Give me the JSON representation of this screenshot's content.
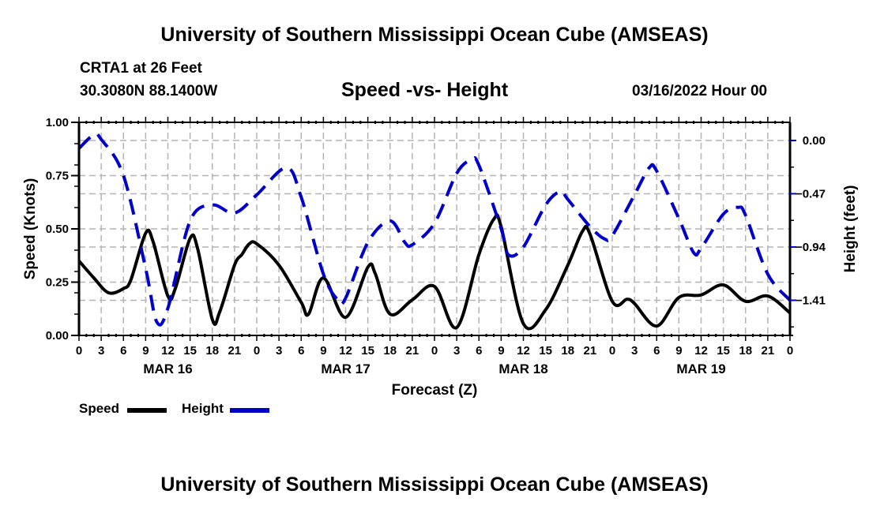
{
  "header": {
    "main_title": "University of Southern Mississippi Ocean Cube (AMSEAS)",
    "station": "CRTA1 at 26 Feet",
    "coords": "30.3080N  88.1400W",
    "subtitle": "Speed -vs- Height",
    "datetime": "03/16/2022 Hour 00"
  },
  "footer": {
    "title": "University of Southern Mississippi Ocean Cube (AMSEAS)"
  },
  "legend": {
    "items": [
      {
        "label": "Speed",
        "color": "#000000",
        "style": "solid"
      },
      {
        "label": "Height",
        "color": "#0000cc",
        "style": "dashed"
      }
    ]
  },
  "chart_data": {
    "type": "line",
    "title": "Speed -vs- Height",
    "xlabel": "Forecast (Z)",
    "ylabel": "Speed (Knots)",
    "y2label": "Height (feet)",
    "x_unit": "forecast hour from 03/16/2022 00Z",
    "xlim": [
      0,
      96
    ],
    "x_ticks": [
      0,
      3,
      6,
      9,
      12,
      15,
      18,
      21,
      24,
      27,
      30,
      33,
      36,
      39,
      42,
      45,
      48,
      51,
      54,
      57,
      60,
      63,
      66,
      69,
      72,
      75,
      78,
      81,
      84,
      87,
      90,
      93,
      96
    ],
    "x_tick_labels": [
      "0",
      "3",
      "6",
      "9",
      "12",
      "15",
      "18",
      "21",
      "0",
      "3",
      "6",
      "9",
      "12",
      "15",
      "18",
      "21",
      "0",
      "3",
      "6",
      "9",
      "12",
      "15",
      "18",
      "21",
      "0",
      "3",
      "6",
      "9",
      "12",
      "15",
      "18",
      "21",
      "0"
    ],
    "day_labels": [
      {
        "label": "MAR 16",
        "hour": 12
      },
      {
        "label": "MAR 17",
        "hour": 36
      },
      {
        "label": "MAR 18",
        "hour": 60
      },
      {
        "label": "MAR 19",
        "hour": 84
      }
    ],
    "ylim": [
      0,
      1.0
    ],
    "y_ticks": [
      0.0,
      0.25,
      0.5,
      0.75,
      1.0
    ],
    "y_tick_labels": [
      "0.00",
      "0.25",
      "0.50",
      "0.75",
      "1.00"
    ],
    "y2lim": [
      -1.72,
      0.16
    ],
    "y2_ticks": [
      0.0,
      -0.47,
      -0.94,
      -1.41
    ],
    "y2_tick_labels": [
      "0.00",
      "−0.47",
      "−0.94",
      "−1.41"
    ],
    "grid": true,
    "legend_position": "bottom-left",
    "series": [
      {
        "name": "Speed",
        "axis": "left",
        "color": "#000000",
        "style": "solid",
        "x": [
          0,
          2,
          4,
          6,
          7,
          9,
          10,
          12,
          13,
          15,
          16,
          18,
          19,
          21,
          22,
          23,
          24,
          27,
          30,
          31,
          33,
          36,
          39,
          40,
          42,
          45,
          48,
          51,
          54,
          56,
          57,
          60,
          63,
          66,
          68,
          69,
          72,
          74,
          75,
          78,
          81,
          84,
          87,
          90,
          93,
          96
        ],
        "values": [
          0.35,
          0.27,
          0.2,
          0.22,
          0.26,
          0.48,
          0.44,
          0.185,
          0.22,
          0.455,
          0.41,
          0.075,
          0.11,
          0.33,
          0.38,
          0.43,
          0.43,
          0.33,
          0.155,
          0.1,
          0.27,
          0.085,
          0.32,
          0.29,
          0.1,
          0.167,
          0.23,
          0.037,
          0.38,
          0.545,
          0.51,
          0.055,
          0.12,
          0.33,
          0.49,
          0.475,
          0.16,
          0.17,
          0.15,
          0.044,
          0.178,
          0.19,
          0.237,
          0.16,
          0.185,
          0.105
        ]
      },
      {
        "name": "Height",
        "axis": "right",
        "color": "#0000cc",
        "style": "dashed",
        "x": [
          0,
          2,
          3,
          6,
          9,
          10.5,
          12,
          15,
          18,
          21,
          24,
          28,
          30,
          33,
          35,
          36,
          39,
          42,
          44,
          45,
          48,
          51,
          53,
          54,
          57,
          58,
          60,
          63,
          65,
          66,
          69,
          71,
          72,
          75,
          77,
          78,
          81,
          83,
          84,
          87,
          89,
          90,
          93,
          96
        ],
        "values": [
          -0.07,
          0.05,
          0.01,
          -0.31,
          -1.13,
          -1.6,
          -1.48,
          -0.71,
          -0.57,
          -0.64,
          -0.48,
          -0.24,
          -0.5,
          -1.18,
          -1.41,
          -1.39,
          -0.9,
          -0.71,
          -0.9,
          -0.92,
          -0.73,
          -0.29,
          -0.17,
          -0.22,
          -0.78,
          -1.01,
          -0.94,
          -0.57,
          -0.45,
          -0.52,
          -0.76,
          -0.87,
          -0.84,
          -0.48,
          -0.24,
          -0.27,
          -0.69,
          -0.99,
          -0.95,
          -0.65,
          -0.59,
          -0.66,
          -1.18,
          -1.41
        ]
      }
    ]
  }
}
